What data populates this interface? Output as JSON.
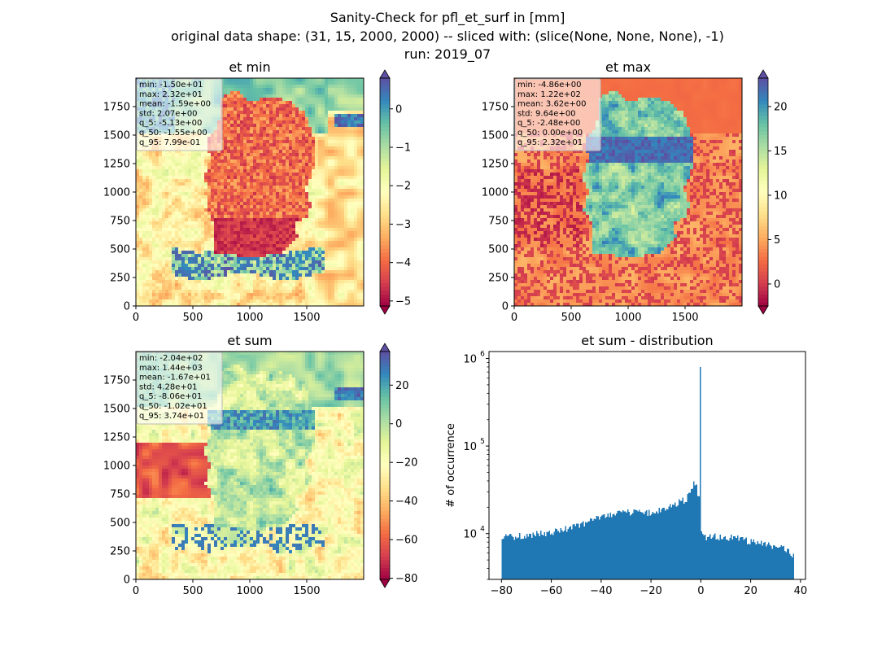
{
  "suptitle": {
    "line1": "Sanity-Check for pfl_et_surf in [mm]",
    "line2": "original data shape: (31, 15, 2000, 2000) -- sliced with: (slice(None, None, None), -1)",
    "line3": "run: 2019_07"
  },
  "chart_data": [
    {
      "type": "heatmap",
      "title": "et min",
      "xlim": [
        0,
        2000
      ],
      "ylim": [
        0,
        2000
      ],
      "xticks": [
        0,
        500,
        1000,
        1500
      ],
      "yticks": [
        0,
        250,
        500,
        750,
        1000,
        1250,
        1500,
        1750
      ],
      "colormap": "Spectral",
      "colorbar": {
        "range": [
          -5.13,
          0.8
        ],
        "ticks": [
          0,
          -1,
          -2,
          -3,
          -4,
          -5
        ],
        "extend": "both"
      },
      "stats": [
        "min: -1.50e+01",
        "max: 2.32e+01",
        "mean: -1.59e+00",
        "std: 2.07e+00",
        "q_5: -5.13e+00",
        "q_50: -1.55e+00",
        "q_95: 7.99e-01"
      ]
    },
    {
      "type": "heatmap",
      "title": "et max",
      "xlim": [
        0,
        2000
      ],
      "ylim": [
        0,
        2000
      ],
      "xticks": [
        0,
        500,
        1000,
        1500
      ],
      "yticks": [
        0,
        250,
        500,
        750,
        1000,
        1250,
        1500,
        1750
      ],
      "colormap": "Spectral",
      "colorbar": {
        "range": [
          -2.48,
          23.2
        ],
        "ticks": [
          20,
          15,
          10,
          5,
          0
        ],
        "extend": "both"
      },
      "stats": [
        "min: -4.86e+00",
        "max: 1.22e+02",
        "mean: 3.62e+00",
        "std: 9.64e+00",
        "q_5: -2.48e+00",
        "q_50: 0.00e+00",
        "q_95: 2.32e+01"
      ]
    },
    {
      "type": "heatmap",
      "title": "et sum",
      "xlim": [
        0,
        2000
      ],
      "ylim": [
        0,
        2000
      ],
      "xticks": [
        0,
        500,
        1000,
        1500
      ],
      "yticks": [
        0,
        250,
        500,
        750,
        1000,
        1250,
        1500,
        1750
      ],
      "colormap": "Spectral",
      "colorbar": {
        "range": [
          -80.6,
          37.4
        ],
        "ticks": [
          20,
          0,
          -20,
          -40,
          -60,
          -80
        ],
        "extend": "both"
      },
      "stats": [
        "min: -2.04e+02",
        "max: 1.44e+03",
        "mean: -1.67e+01",
        "std: 4.28e+01",
        "q_5: -8.06e+01",
        "q_50: -1.02e+01",
        "q_95: 3.74e+01"
      ]
    },
    {
      "type": "bar",
      "title": "et sum - distribution",
      "ylabel": "# of occurrence",
      "xlabel": "",
      "yscale": "log",
      "xlim": [
        -85,
        42
      ],
      "ylim": [
        3000,
        1200000
      ],
      "xticks": [
        -80,
        -60,
        -40,
        -20,
        0,
        20,
        40
      ],
      "yticks": [
        10000,
        100000,
        1000000
      ],
      "yticklabels": [
        [
          "10",
          "4"
        ],
        [
          "10",
          "5"
        ],
        [
          "10",
          "6"
        ]
      ],
      "color": "#1f77b4",
      "bins": {
        "x": [
          -80,
          -70,
          -60,
          -50,
          -40,
          -30,
          -20,
          -15,
          -10,
          -6,
          -4,
          -2.5,
          -1.5,
          -0.8,
          -0.3,
          -0.15,
          0,
          0.15,
          0.5,
          1,
          2,
          5,
          10,
          15,
          20,
          25,
          30,
          35,
          37
        ],
        "y": [
          9000,
          9500,
          10500,
          12000,
          15500,
          17500,
          17500,
          18500,
          22000,
          24500,
          29000,
          40000,
          32000,
          25000,
          22000,
          800000,
          12500,
          11000,
          9800,
          9500,
          9200,
          9500,
          8800,
          9000,
          8000,
          7800,
          7200,
          6500,
          5500
        ]
      }
    }
  ]
}
